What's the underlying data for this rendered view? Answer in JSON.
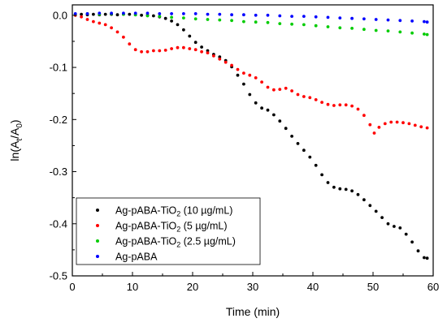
{
  "chart_data": {
    "type": "scatter",
    "xlabel": "Time (min)",
    "ylabel": {
      "prefix": "ln(A",
      "sub1": "t",
      "middle": "/A",
      "sub2": "0",
      "suffix": ")"
    },
    "xlim": [
      0,
      60
    ],
    "ylim": [
      -0.5,
      0.02
    ],
    "x_ticks": [
      "0",
      "10",
      "20",
      "30",
      "40",
      "50",
      "60"
    ],
    "y_ticks": [
      "0.0",
      "-0.1",
      "-0.2",
      "-0.3",
      "-0.4",
      "-0.5"
    ],
    "grid": false,
    "legend_position": "bottom-left",
    "series": [
      {
        "name": "Ag-pABA-TiO2 (10 µg/mL)",
        "label": {
          "prefix": "Ag-pABA-TiO",
          "sub": "2",
          "suffix": " (10 µg/mL)"
        },
        "color": "#000000",
        "points": [
          [
            0.5,
            0.0
          ],
          [
            1.5,
            0.002
          ],
          [
            2.5,
            0.001
          ],
          [
            3.5,
            0.002
          ],
          [
            4.5,
            0.001
          ],
          [
            5.5,
            0.002
          ],
          [
            6.5,
            0.002
          ],
          [
            7.5,
            0.001
          ],
          [
            8.5,
            0.002
          ],
          [
            9.5,
            0.002
          ],
          [
            10.5,
            0.001
          ],
          [
            11.5,
            0.0
          ],
          [
            12.5,
            0.0
          ],
          [
            13.5,
            -0.001
          ],
          [
            14.5,
            -0.003
          ],
          [
            15.5,
            -0.006
          ],
          [
            16.5,
            -0.011
          ],
          [
            17.5,
            -0.018
          ],
          [
            18.5,
            -0.028
          ],
          [
            19.5,
            -0.04
          ],
          [
            20.5,
            -0.052
          ],
          [
            21.5,
            -0.061
          ],
          [
            22.5,
            -0.068
          ],
          [
            23.5,
            -0.075
          ],
          [
            24.5,
            -0.08
          ],
          [
            25.5,
            -0.087
          ],
          [
            26.5,
            -0.099
          ],
          [
            27.5,
            -0.115
          ],
          [
            28.5,
            -0.132
          ],
          [
            29.5,
            -0.152
          ],
          [
            30.5,
            -0.168
          ],
          [
            31.5,
            -0.178
          ],
          [
            32.5,
            -0.182
          ],
          [
            33.5,
            -0.191
          ],
          [
            34.5,
            -0.203
          ],
          [
            35.5,
            -0.217
          ],
          [
            36.5,
            -0.232
          ],
          [
            37.5,
            -0.246
          ],
          [
            38.5,
            -0.259
          ],
          [
            39.5,
            -0.272
          ],
          [
            40.5,
            -0.288
          ],
          [
            41.5,
            -0.306
          ],
          [
            42.5,
            -0.321
          ],
          [
            43.5,
            -0.33
          ],
          [
            44.5,
            -0.333
          ],
          [
            45.5,
            -0.334
          ],
          [
            46.5,
            -0.337
          ],
          [
            47.5,
            -0.344
          ],
          [
            48.5,
            -0.354
          ],
          [
            49.5,
            -0.365
          ],
          [
            50.5,
            -0.376
          ],
          [
            51.5,
            -0.388
          ],
          [
            52.5,
            -0.4
          ],
          [
            53.5,
            -0.405
          ],
          [
            54.5,
            -0.408
          ],
          [
            55.5,
            -0.42
          ],
          [
            56.5,
            -0.435
          ],
          [
            57.5,
            -0.452
          ],
          [
            58.5,
            -0.465
          ],
          [
            59,
            -0.466
          ]
        ]
      },
      {
        "name": "Ag-pABA-TiO2 (5 µg/mL)",
        "label": {
          "prefix": "Ag-pABA-TiO",
          "sub": "2",
          "suffix": " (5 µg/mL)"
        },
        "color": "#ff0000",
        "points": [
          [
            0.5,
            0.0
          ],
          [
            1.5,
            -0.003
          ],
          [
            2.5,
            -0.008
          ],
          [
            3.5,
            -0.012
          ],
          [
            4.5,
            -0.015
          ],
          [
            5.5,
            -0.018
          ],
          [
            6.5,
            -0.024
          ],
          [
            7.5,
            -0.032
          ],
          [
            8.5,
            -0.042
          ],
          [
            9.5,
            -0.055
          ],
          [
            10.5,
            -0.066
          ],
          [
            11.5,
            -0.07
          ],
          [
            12.5,
            -0.07
          ],
          [
            13.5,
            -0.068
          ],
          [
            14.5,
            -0.068
          ],
          [
            15.5,
            -0.067
          ],
          [
            16.5,
            -0.064
          ],
          [
            17.5,
            -0.062
          ],
          [
            18.5,
            -0.062
          ],
          [
            19.5,
            -0.064
          ],
          [
            20.5,
            -0.066
          ],
          [
            21.5,
            -0.07
          ],
          [
            22.5,
            -0.072
          ],
          [
            23.5,
            -0.078
          ],
          [
            24.5,
            -0.084
          ],
          [
            25.5,
            -0.09
          ],
          [
            26.5,
            -0.096
          ],
          [
            27.5,
            -0.104
          ],
          [
            28.5,
            -0.111
          ],
          [
            29.5,
            -0.115
          ],
          [
            30.5,
            -0.12
          ],
          [
            31.5,
            -0.128
          ],
          [
            32.5,
            -0.138
          ],
          [
            33.5,
            -0.143
          ],
          [
            34.5,
            -0.142
          ],
          [
            35.5,
            -0.14
          ],
          [
            36.5,
            -0.145
          ],
          [
            37.5,
            -0.152
          ],
          [
            38.5,
            -0.156
          ],
          [
            39.5,
            -0.158
          ],
          [
            40.5,
            -0.162
          ],
          [
            41.5,
            -0.167
          ],
          [
            42.5,
            -0.171
          ],
          [
            43.5,
            -0.173
          ],
          [
            44.5,
            -0.172
          ],
          [
            45.5,
            -0.172
          ],
          [
            46.5,
            -0.174
          ],
          [
            47.5,
            -0.18
          ],
          [
            48.5,
            -0.192
          ],
          [
            49.5,
            -0.21
          ],
          [
            50.2,
            -0.226
          ],
          [
            51,
            -0.215
          ],
          [
            52,
            -0.208
          ],
          [
            53,
            -0.205
          ],
          [
            54,
            -0.205
          ],
          [
            55,
            -0.206
          ],
          [
            56,
            -0.208
          ],
          [
            57,
            -0.211
          ],
          [
            58,
            -0.214
          ],
          [
            59,
            -0.216
          ]
        ]
      },
      {
        "name": "Ag-pABA-TiO2 (2.5 µg/mL)",
        "label": {
          "prefix": "Ag-pABA-TiO",
          "sub": "2",
          "suffix": " (2.5 µg/mL)"
        },
        "color": "#00cc00",
        "points": [
          [
            0.5,
            0.002
          ],
          [
            2.5,
            0.003
          ],
          [
            4.5,
            0.002
          ],
          [
            6.5,
            0.003
          ],
          [
            8.5,
            0.002
          ],
          [
            10.5,
            0.001
          ],
          [
            12.5,
            -0.001
          ],
          [
            14.5,
            -0.002
          ],
          [
            16.5,
            -0.004
          ],
          [
            18.5,
            -0.005
          ],
          [
            20.5,
            -0.007
          ],
          [
            22.5,
            -0.008
          ],
          [
            24.5,
            -0.009
          ],
          [
            26.5,
            -0.01
          ],
          [
            28.5,
            -0.012
          ],
          [
            30.5,
            -0.013
          ],
          [
            32.5,
            -0.014
          ],
          [
            34.5,
            -0.016
          ],
          [
            36.5,
            -0.017
          ],
          [
            38.5,
            -0.018
          ],
          [
            40.5,
            -0.02
          ],
          [
            42.5,
            -0.022
          ],
          [
            44.5,
            -0.024
          ],
          [
            46.5,
            -0.025
          ],
          [
            48.5,
            -0.027
          ],
          [
            50.5,
            -0.029
          ],
          [
            52.5,
            -0.03
          ],
          [
            54.5,
            -0.032
          ],
          [
            56.5,
            -0.034
          ],
          [
            58.5,
            -0.036
          ],
          [
            59,
            -0.037
          ]
        ]
      },
      {
        "name": "Ag-pABA",
        "label": {
          "prefix": "Ag-pABA",
          "sub": "",
          "suffix": ""
        },
        "color": "#0000ff",
        "points": [
          [
            0.5,
            0.003
          ],
          [
            2.5,
            0.003
          ],
          [
            4.5,
            0.004
          ],
          [
            6.5,
            0.004
          ],
          [
            8.5,
            0.004
          ],
          [
            10.5,
            0.004
          ],
          [
            12.5,
            0.004
          ],
          [
            14.5,
            0.003
          ],
          [
            16.5,
            0.003
          ],
          [
            18.5,
            0.003
          ],
          [
            20.5,
            0.003
          ],
          [
            22.5,
            0.002
          ],
          [
            24.5,
            0.002
          ],
          [
            26.5,
            0.001
          ],
          [
            28.5,
            0.001
          ],
          [
            30.5,
            0.0
          ],
          [
            32.5,
            0.0
          ],
          [
            34.5,
            -0.001
          ],
          [
            36.5,
            -0.002
          ],
          [
            38.5,
            -0.002
          ],
          [
            40.5,
            -0.003
          ],
          [
            42.5,
            -0.004
          ],
          [
            44.5,
            -0.005
          ],
          [
            46.5,
            -0.006
          ],
          [
            48.5,
            -0.007
          ],
          [
            50.5,
            -0.008
          ],
          [
            52.5,
            -0.009
          ],
          [
            54.5,
            -0.01
          ],
          [
            56.5,
            -0.011
          ],
          [
            58.5,
            -0.012
          ],
          [
            59,
            -0.013
          ]
        ]
      }
    ]
  }
}
